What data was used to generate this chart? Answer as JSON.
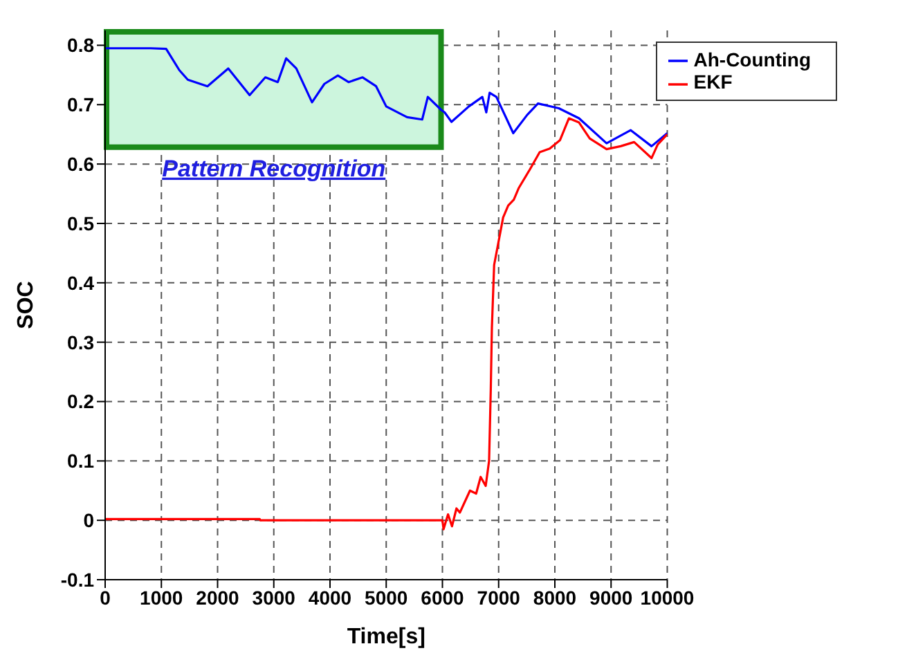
{
  "chart_data": {
    "type": "line",
    "xlabel": "Time[s]",
    "ylabel": "SOC",
    "xlim": [
      0,
      10000
    ],
    "xticks": [
      0,
      1000,
      2000,
      3000,
      4000,
      5000,
      6000,
      7000,
      8000,
      9000,
      10000
    ],
    "ylim": [
      -0.1,
      0.825
    ],
    "yticks": [
      -0.1,
      0,
      0.1,
      0.2,
      0.3,
      0.4,
      0.5,
      0.6,
      0.7,
      0.8
    ],
    "grid": true,
    "legend": "top right",
    "marker": "none",
    "line_style": "solid",
    "bands": [
      {
        "axis": "x",
        "from": 0,
        "to": 6000,
        "label": "Pattern Recognition",
        "color": "#ccf5dd"
      }
    ],
    "series": [
      {
        "name": "Ah-Counting",
        "color": "#0000ff",
        "x": [
          0,
          810,
          1085,
          1320,
          1470,
          1820,
          2190,
          2570,
          2850,
          3070,
          3220,
          3400,
          3680,
          3900,
          4140,
          4330,
          4580,
          4820,
          5000,
          5370,
          5640,
          5740,
          5980,
          6040,
          6160,
          6470,
          6710,
          6780,
          6840,
          6960,
          7260,
          7510,
          7700,
          8070,
          8430,
          8920,
          9350,
          9720,
          10000
        ],
        "values": [
          0.795,
          0.795,
          0.794,
          0.758,
          0.742,
          0.731,
          0.761,
          0.716,
          0.746,
          0.738,
          0.778,
          0.761,
          0.704,
          0.735,
          0.749,
          0.738,
          0.746,
          0.731,
          0.697,
          0.679,
          0.675,
          0.713,
          0.691,
          0.687,
          0.671,
          0.697,
          0.713,
          0.687,
          0.72,
          0.713,
          0.652,
          0.683,
          0.702,
          0.694,
          0.677,
          0.635,
          0.657,
          0.63,
          0.652
        ]
      },
      {
        "name": "EKF",
        "color": "#ff0000",
        "x": [
          0,
          2750,
          2760,
          6000,
          6020,
          6100,
          6170,
          6250,
          6310,
          6490,
          6600,
          6680,
          6770,
          6830,
          6860,
          6880,
          6920,
          6980,
          7080,
          7170,
          7270,
          7360,
          7550,
          7730,
          7910,
          8090,
          8250,
          8430,
          8620,
          8920,
          9170,
          9410,
          9720,
          9830,
          10000
        ],
        "values": [
          0.002,
          0.002,
          0,
          0,
          -0.015,
          0.01,
          -0.01,
          0.02,
          0.013,
          0.05,
          0.045,
          0.073,
          0.058,
          0.1,
          0.22,
          0.325,
          0.43,
          0.46,
          0.51,
          0.53,
          0.54,
          0.56,
          0.59,
          0.62,
          0.626,
          0.64,
          0.677,
          0.67,
          0.643,
          0.625,
          0.63,
          0.637,
          0.61,
          0.633,
          0.65
        ]
      }
    ]
  }
}
